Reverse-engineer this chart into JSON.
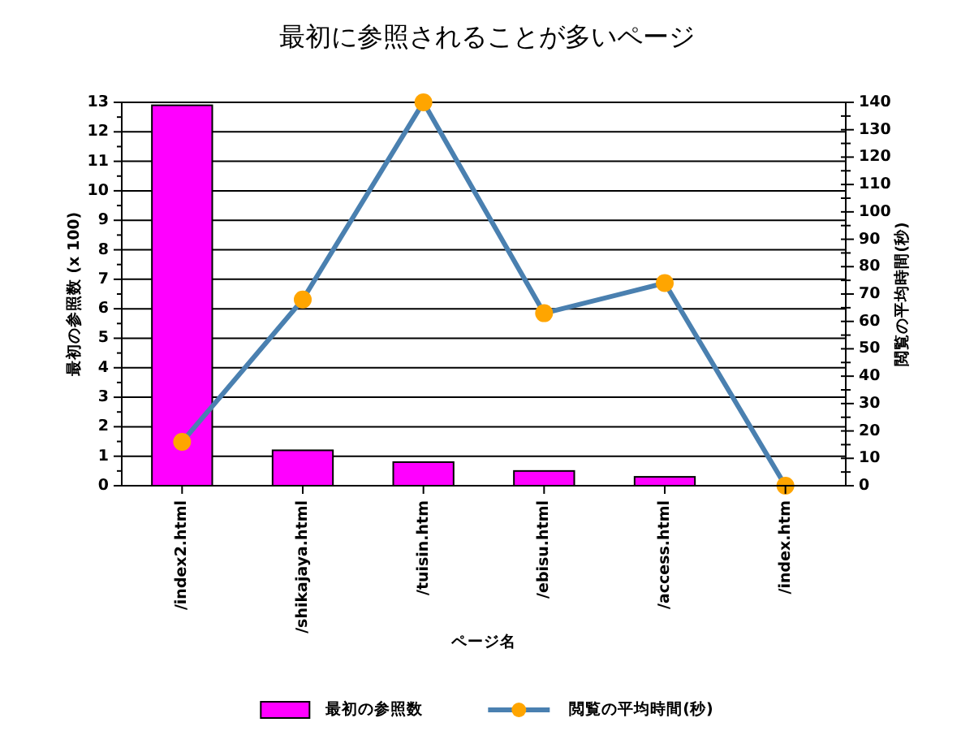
{
  "chart_data": {
    "type": "bar",
    "title": "最初に参照されることが多いページ",
    "xlabel": "ページ名",
    "ylabel": "最初の参照数 (x 100)",
    "y2label": "閲覧の平均時間(秒)",
    "categories": [
      "/index2.html",
      "/shikajaya.html",
      "/tuisin.htm",
      "/ebisu.html",
      "/access.html",
      "/index.htm"
    ],
    "series": [
      {
        "name": "最初の参照数",
        "color": "#ff00ff",
        "values": [
          12.9,
          1.2,
          0.8,
          0.5,
          0.3,
          0
        ]
      },
      {
        "name": "閲覧の平均時間(秒)",
        "type": "line",
        "axis": "y2",
        "color": "#4a80b0",
        "colors": [
          "#ffa500",
          "#ffa500",
          "#ffa500",
          "#ffa500",
          "#ffa500",
          "#ffa500"
        ],
        "values": [
          16,
          68,
          140,
          63,
          74,
          0
        ]
      }
    ],
    "ylim": [
      0,
      13
    ],
    "yticks": [
      0,
      {
        "value": 0.5,
        "label": null
      },
      1,
      {
        "value": 1.5,
        "label": null
      },
      2,
      {
        "value": 2.5,
        "label": null
      },
      3,
      {
        "value": 3.5,
        "label": null
      },
      4,
      {
        "value": 4.5,
        "label": null
      },
      5,
      {
        "value": 5.5,
        "label": null
      },
      6,
      {
        "value": 6.5,
        "label": null
      },
      7,
      {
        "value": 7.5,
        "label": null
      },
      8,
      {
        "value": 8.5,
        "label": null
      },
      9,
      {
        "value": 9.5,
        "label": null
      },
      10,
      {
        "value": 10.5,
        "label": null
      },
      11,
      {
        "value": 11.5,
        "label": null
      },
      12,
      {
        "value": 12.5,
        "label": null
      },
      13
    ],
    "y2lim": [
      0,
      140
    ],
    "y2ticks": [
      0,
      {
        "value": 5,
        "label": null
      },
      10,
      {
        "value": 15,
        "label": null
      },
      20,
      {
        "value": 25,
        "label": null
      },
      30,
      {
        "value": 35,
        "label": null
      },
      40,
      {
        "value": 45,
        "label": null
      },
      50,
      {
        "value": 55,
        "label": null
      },
      60,
      {
        "value": 65,
        "label": null
      },
      70,
      {
        "value": 75,
        "label": null
      },
      80,
      {
        "value": 85,
        "label": null
      },
      90,
      {
        "value": 95,
        "label": null
      },
      100,
      {
        "value": 105,
        "label": null
      },
      110,
      {
        "value": 115,
        "label": null
      },
      120,
      {
        "value": 125,
        "label": null
      },
      130,
      {
        "value": 135,
        "label": null
      },
      140
    ],
    "grid": "y",
    "legend": "bottom",
    "marker": "circle",
    "line_style": "solid"
  }
}
